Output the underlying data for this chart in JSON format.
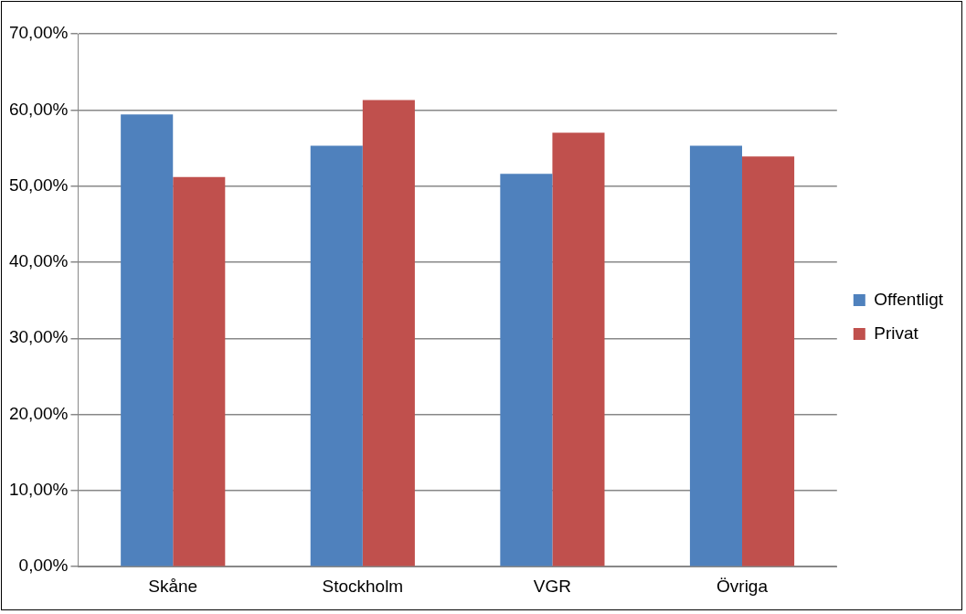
{
  "chart_data": {
    "type": "bar",
    "categories": [
      "Skåne",
      "Stockholm",
      "VGR",
      "Övriga"
    ],
    "series": [
      {
        "name": "Offentligt",
        "color": "#4f81bd",
        "values": [
          59.4,
          55.3,
          51.6,
          55.3
        ]
      },
      {
        "name": "Privat",
        "color": "#c0504d",
        "values": [
          51.2,
          61.3,
          57.0,
          53.9
        ]
      }
    ],
    "ylim": [
      0,
      70
    ],
    "yticks": [
      {
        "value": 0,
        "label": "0,00%"
      },
      {
        "value": 10,
        "label": "10,00%"
      },
      {
        "value": 20,
        "label": "20,00%"
      },
      {
        "value": 30,
        "label": "30,00%"
      },
      {
        "value": 40,
        "label": "40,00%"
      },
      {
        "value": 50,
        "label": "50,00%"
      },
      {
        "value": 60,
        "label": "60,00%"
      },
      {
        "value": 70,
        "label": "70,00%"
      }
    ],
    "grid": "y",
    "legend": "right"
  }
}
